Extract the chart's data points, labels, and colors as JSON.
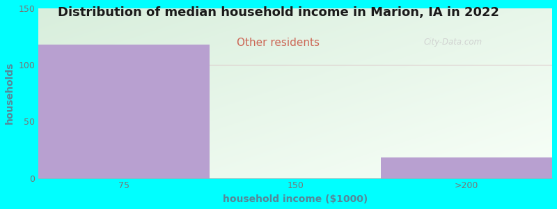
{
  "title": "Distribution of median household income in Marion, IA in 2022",
  "subtitle": "Other residents",
  "xlabel": "household income ($1000)",
  "ylabel": "households",
  "background_color": "#00FFFF",
  "bar_color": "#b8a0d0",
  "title_color": "#1a1a1a",
  "subtitle_color": "#cc6655",
  "label_color": "#558899",
  "tick_color": "#777777",
  "categories": [
    "75",
    "150",
    ">200"
  ],
  "values": [
    118,
    0,
    18
  ],
  "ylim": [
    0,
    150
  ],
  "yticks": [
    0,
    50,
    100,
    150
  ],
  "watermark": "City-Data.com",
  "title_fontsize": 13,
  "subtitle_fontsize": 11,
  "label_fontsize": 10,
  "tick_fontsize": 9,
  "plot_bg_color_tl": "#d8eedc",
  "plot_bg_color_br": "#f5fdf5",
  "hline_color": "#ddcccc",
  "hline_y": 100
}
